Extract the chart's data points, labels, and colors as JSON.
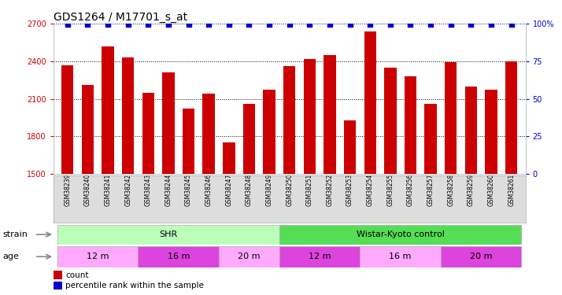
{
  "title": "GDS1264 / M17701_s_at",
  "samples": [
    "GSM38239",
    "GSM38240",
    "GSM38241",
    "GSM38242",
    "GSM38243",
    "GSM38244",
    "GSM38245",
    "GSM38246",
    "GSM38247",
    "GSM38248",
    "GSM38249",
    "GSM38250",
    "GSM38251",
    "GSM38252",
    "GSM38253",
    "GSM38254",
    "GSM38255",
    "GSM38256",
    "GSM38257",
    "GSM38258",
    "GSM38259",
    "GSM38260",
    "GSM38261"
  ],
  "counts": [
    2370,
    2210,
    2520,
    2430,
    2150,
    2310,
    2020,
    2140,
    1750,
    2060,
    2170,
    2360,
    2420,
    2450,
    1930,
    2640,
    2350,
    2280,
    2060,
    2390,
    2200,
    2170,
    2400
  ],
  "bar_color": "#cc0000",
  "percentile_color": "#0000cc",
  "ylim_left": [
    1500,
    2700
  ],
  "ylim_right": [
    0,
    100
  ],
  "yticks_left": [
    1500,
    1800,
    2100,
    2400,
    2700
  ],
  "yticks_right": [
    0,
    25,
    50,
    75,
    100
  ],
  "strain_groups": [
    {
      "label": "SHR",
      "start": 0,
      "end": 11,
      "color": "#bbffbb"
    },
    {
      "label": "Wistar-Kyoto control",
      "start": 11,
      "end": 23,
      "color": "#55dd55"
    }
  ],
  "age_groups": [
    {
      "label": "12 m",
      "start": 0,
      "end": 4,
      "color": "#ffaaff"
    },
    {
      "label": "16 m",
      "start": 4,
      "end": 8,
      "color": "#dd44dd"
    },
    {
      "label": "20 m",
      "start": 8,
      "end": 11,
      "color": "#ffaaff"
    },
    {
      "label": "12 m",
      "start": 11,
      "end": 15,
      "color": "#dd44dd"
    },
    {
      "label": "16 m",
      "start": 15,
      "end": 19,
      "color": "#ffaaff"
    },
    {
      "label": "20 m",
      "start": 19,
      "end": 23,
      "color": "#dd44dd"
    }
  ],
  "legend_count_label": "count",
  "legend_percentile_label": "percentile rank within the sample",
  "strain_label": "strain",
  "age_label": "age",
  "background_color": "#ffffff",
  "title_fontsize": 10,
  "tick_fontsize": 7,
  "bar_width": 0.6,
  "label_area_color": "#dddddd"
}
